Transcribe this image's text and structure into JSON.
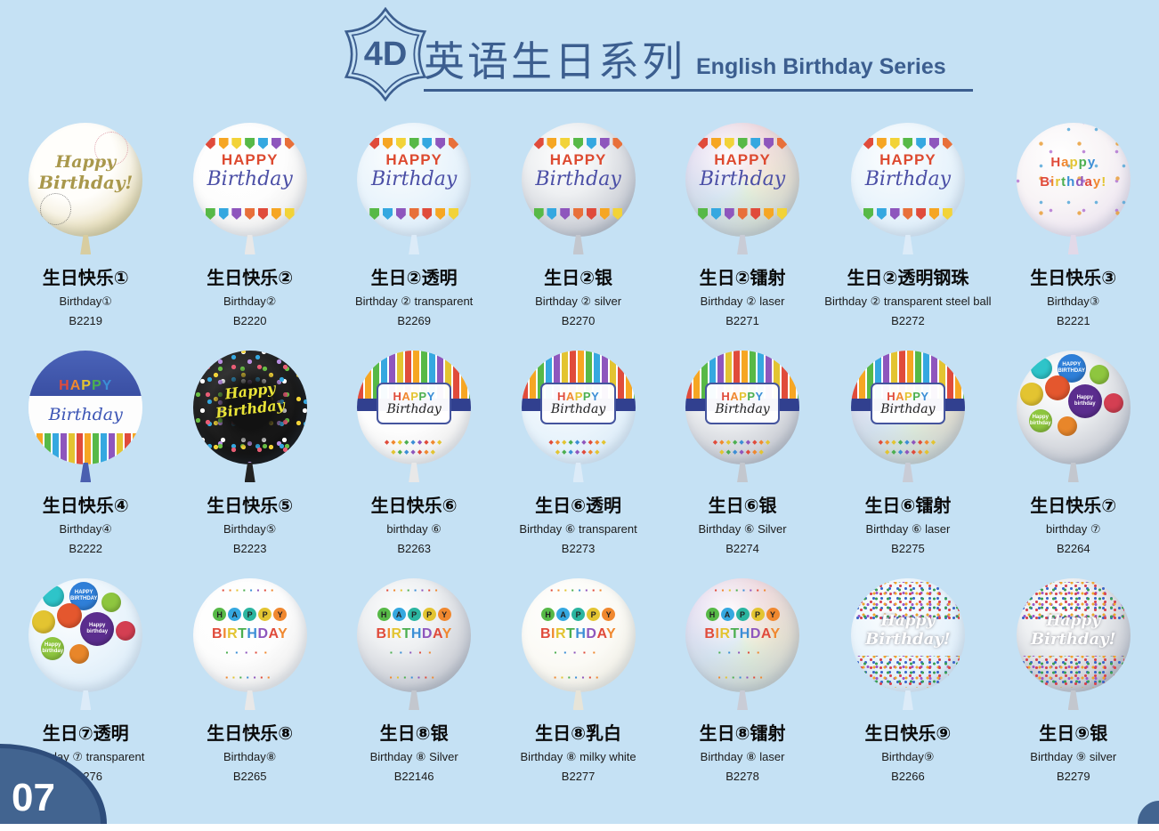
{
  "page": {
    "badge": "4D",
    "title_zh": "英语生日系列",
    "title_en": "English Birthday Series",
    "page_number": "07",
    "colors": {
      "background": "#c5e1f4",
      "accent": "#3c5e8f",
      "corner_dark": "#2e4d7b",
      "corner_light": "#426490",
      "text": "#0a0a0a"
    }
  },
  "palette": {
    "letters": [
      "#e04b3b",
      "#f0882f",
      "#e3c431",
      "#4caf50",
      "#3b8ed6",
      "#8e56bd"
    ],
    "flags": [
      "#e04b3b",
      "#f6a623",
      "#f2d338",
      "#57b947",
      "#35a8e0",
      "#8e56bd",
      "#e8703a"
    ],
    "circles": [
      "#57b947",
      "#35a8e0",
      "#2bb5a0",
      "#e3c431",
      "#f0882f"
    ],
    "mini_balloons": [
      "#2ec4c9",
      "#2f7fd8",
      "#8ec63f",
      "#e3c431",
      "#e4572e",
      "#5b2d8e",
      "#d43f52",
      "#e8862a"
    ]
  },
  "balloon_texts": {
    "gold": {
      "line1": "Happy",
      "line2": "Birthday!"
    },
    "bunting": {
      "top": "HAPPY",
      "script": "Birthday"
    },
    "pearl": {
      "line1": "Happy",
      "line2": "Birthday!"
    },
    "candles": {
      "top": "HAPPY",
      "script": "Birthday"
    },
    "blackdots": {
      "line1": "Happy",
      "line2": "Birthday"
    },
    "stripe": {
      "top": "HAPPY",
      "script": "Birthday"
    },
    "miniballoons": {
      "text1": "HAPPY BIRTHDAY",
      "text2": "Happy birthday"
    },
    "confetti": {
      "line1": "HAPPY",
      "line2": "BIRTHDAY"
    },
    "sprinkle": {
      "line1": "Happy",
      "line2": "Birthday!"
    }
  },
  "products": [
    {
      "name_zh": "生日快乐①",
      "name_en": "Birthday①",
      "code": "B2219",
      "design": "gold"
    },
    {
      "name_zh": "生日快乐②",
      "name_en": "Birthday②",
      "code": "B2220",
      "design": "bunting-white"
    },
    {
      "name_zh": "生日②透明",
      "name_en": "Birthday ② transparent",
      "code": "B2269",
      "design": "bunting-clear"
    },
    {
      "name_zh": "生日②银",
      "name_en": "Birthday ② silver",
      "code": "B2270",
      "design": "bunting-silver"
    },
    {
      "name_zh": "生日②镭射",
      "name_en": "Birthday ② laser",
      "code": "B2271",
      "design": "bunting-laser"
    },
    {
      "name_zh": "生日②透明钢珠",
      "name_en": "Birthday ② transparent steel ball",
      "code": "B2272",
      "design": "bunting-clear"
    },
    {
      "name_zh": "生日快乐③",
      "name_en": "Birthday③",
      "code": "B2221",
      "design": "pearl"
    },
    {
      "name_zh": "生日快乐④",
      "name_en": "Birthday④",
      "code": "B2222",
      "design": "candles"
    },
    {
      "name_zh": "生日快乐⑤",
      "name_en": "Birthday⑤",
      "code": "B2223",
      "design": "blackdots"
    },
    {
      "name_zh": "生日快乐⑥",
      "name_en": "birthday ⑥",
      "code": "B2263",
      "design": "stripe-white"
    },
    {
      "name_zh": "生日⑥透明",
      "name_en": "Birthday ⑥ transparent",
      "code": "B2273",
      "design": "stripe-clear"
    },
    {
      "name_zh": "生日⑥银",
      "name_en": "Birthday ⑥ Silver",
      "code": "B2274",
      "design": "stripe-silver"
    },
    {
      "name_zh": "生日⑥镭射",
      "name_en": "Birthday ⑥ laser",
      "code": "B2275",
      "design": "stripe-laser"
    },
    {
      "name_zh": "生日快乐⑦",
      "name_en": "birthday ⑦",
      "code": "B2264",
      "design": "miniballoons-silver"
    },
    {
      "name_zh": "生日⑦透明",
      "name_en": "Birthday ⑦ transparent",
      "code": "B2276",
      "design": "miniballoons-clear"
    },
    {
      "name_zh": "生日快乐⑧",
      "name_en": "Birthday⑧",
      "code": "B2265",
      "design": "confetti-white"
    },
    {
      "name_zh": "生日⑧银",
      "name_en": "Birthday ⑧ Silver",
      "code": "B22146",
      "design": "confetti-silver"
    },
    {
      "name_zh": "生日⑧乳白",
      "name_en": "Birthday ⑧ milky white",
      "code": "B2277",
      "design": "confetti-milky"
    },
    {
      "name_zh": "生日⑧镭射",
      "name_en": "Birthday ⑧ laser",
      "code": "B2278",
      "design": "confetti-laser"
    },
    {
      "name_zh": "生日快乐⑨",
      "name_en": "Birthday⑨",
      "code": "B2266",
      "design": "sprinkle-clear"
    },
    {
      "name_zh": "生日⑨银",
      "name_en": "Birthday ⑨ silver",
      "code": "B2279",
      "design": "sprinkle-silver"
    }
  ]
}
